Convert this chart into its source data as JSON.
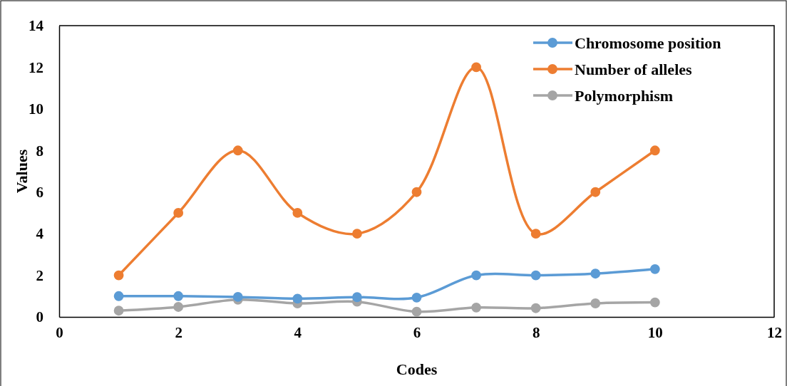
{
  "chart_data": {
    "type": "line",
    "xlabel": "Codes",
    "ylabel": "Values",
    "x": [
      1,
      2,
      3,
      4,
      5,
      6,
      7,
      8,
      9,
      10
    ],
    "xlim": [
      0,
      12
    ],
    "xticks": [
      0,
      2,
      4,
      6,
      8,
      10,
      12
    ],
    "ylim": [
      0,
      14
    ],
    "yticks": [
      0,
      2,
      4,
      6,
      8,
      10,
      12,
      14
    ],
    "series": [
      {
        "name": "Chromosome position",
        "color": "#5b9bd5",
        "values": [
          1.0,
          1.0,
          0.96,
          0.88,
          0.95,
          0.93,
          2.0,
          2.0,
          2.08,
          2.3
        ]
      },
      {
        "name": "Number of alleles",
        "color": "#ed7d31",
        "values": [
          2,
          5,
          8,
          5,
          4,
          6,
          12,
          4,
          6,
          8
        ]
      },
      {
        "name": "Polymorphism",
        "color": "#a5a5a5",
        "values": [
          0.3,
          0.48,
          0.83,
          0.65,
          0.73,
          0.25,
          0.45,
          0.42,
          0.65,
          0.7
        ]
      }
    ],
    "grid": false,
    "legend": "top right",
    "marker": "circle",
    "line_style": "solid"
  }
}
